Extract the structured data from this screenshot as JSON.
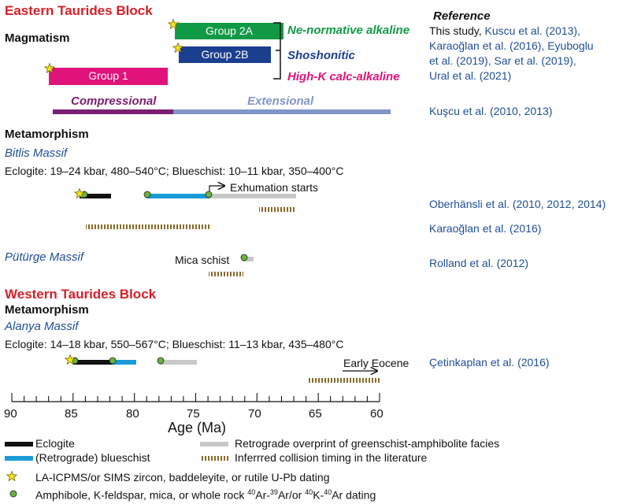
{
  "eastern": {
    "title": "Eastern Taurides Block",
    "magmatism": "Magmatism",
    "groups": {
      "g2a": "Group 2A",
      "g2b": "Group 2B",
      "g1": "Group 1"
    },
    "types": {
      "ne": "Ne-normative alkaline",
      "sho": "Shoshonitic",
      "hk": "High-K calc-alkaline"
    },
    "regime": {
      "comp": "Compressional",
      "ext": "Extensional"
    },
    "metamorphism": "Metamorphism",
    "bitlis": {
      "name": "Bitlis Massif",
      "conditions": "Eclogite: 19–24 kbar, 480–540°C; Blueschist: 10–11 kbar, 350–400°C",
      "exhumation": "Exhumation starts"
    },
    "puturge": {
      "name": "Pütürge Massif",
      "mica": "Mica schist"
    }
  },
  "western": {
    "title": "Western Taurides Block",
    "metamorphism": "Metamorphism",
    "alanya": {
      "name": "Alanya Massif",
      "conditions": "Eclogite: 14–18 kbar, 550–567°C; Blueschist: 11–13 kbar, 435–480°C",
      "early_eocene": "Early Eocene"
    }
  },
  "references": {
    "header": "Reference",
    "r1_a": "This study,",
    "r1_b": " Kuscu et al. (2013),",
    "r2": "Karaoğlan et al. (2016), Eyuboglu",
    "r3": "et al. (2019), Sar et al. (2019),",
    "r4": "Ural et al. (2021)",
    "kuscu": "Kuşcu et al. (2010, 2013)",
    "oberhansli": "Oberhänsli et al. (2010, 2012, 2014)",
    "karaoglan": "Karaoğlan et al. (2016)",
    "rolland": "Rolland et al. (2012)",
    "cetinkaplan": "Çetinkaplan et al. (2016)"
  },
  "axis": {
    "label": "Age (Ma)",
    "ticks": [
      "90",
      "85",
      "80",
      "75",
      "70",
      "65",
      "60"
    ],
    "min": 90,
    "max": 60
  },
  "legend": {
    "eclogite": "Eclogite",
    "blueschist": "(Retrograde) blueschist",
    "retrograde": "Retrograde overprint of greenschist-amphibolite facies",
    "collision": "Inferrred collision timing in the literature",
    "star": "LA-ICPMS/or SIMS zircon, baddeleyite, or rutile U-Pb dating",
    "dot_pre": "Amphibole, K-feldspar, mica,  or whole rock ",
    "dot_sup1": "40",
    "dot_mid1": "Ar-",
    "dot_sup2": "39",
    "dot_mid2": "Ar/or ",
    "dot_sup3": "40",
    "dot_mid3": "K-",
    "dot_sup4": "40",
    "dot_end": "Ar dating"
  },
  "colors": {
    "red": "#d6202a",
    "blue_text": "#1f4e96",
    "green_group": "#119a46",
    "navy_group": "#1b3f8f",
    "magenta_group": "#e0137a",
    "compressional": "#7a1f72",
    "extensional": "#8095c9",
    "eclogite": "#111111",
    "blueschist": "#1a9bd7",
    "retrograde": "#c8c8c8",
    "collision": "#8a6a2a",
    "star": "#f6e61a",
    "dot": "#6ab43a"
  }
}
